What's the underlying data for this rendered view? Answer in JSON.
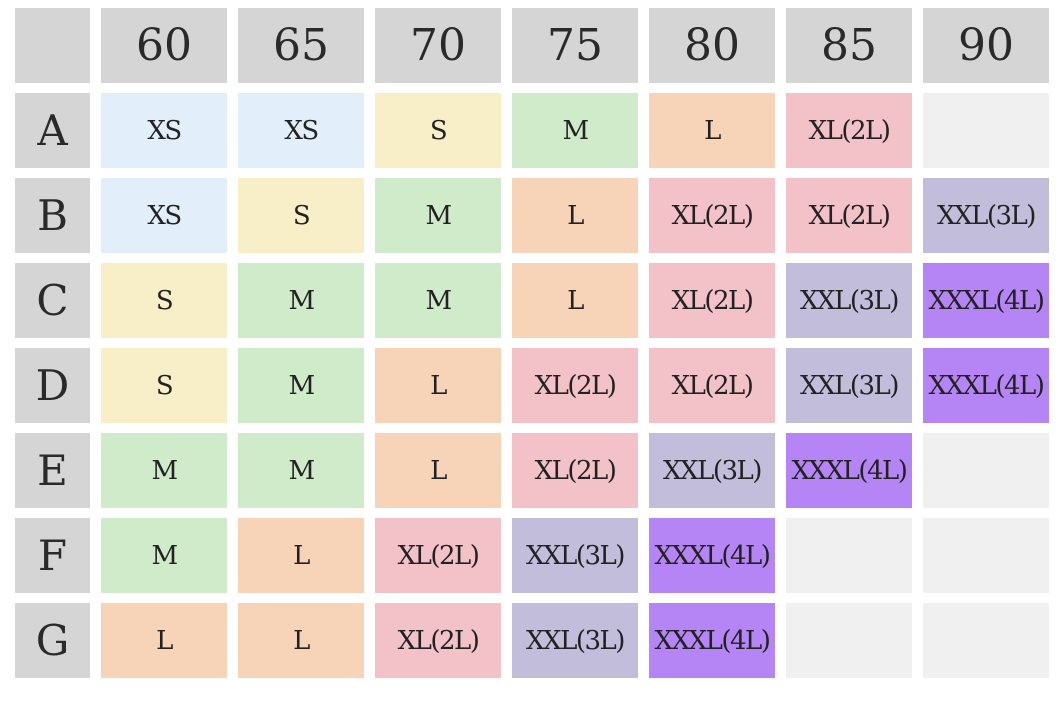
{
  "table": {
    "columns": [
      "60",
      "65",
      "70",
      "75",
      "80",
      "85",
      "90"
    ],
    "rows": [
      {
        "label": "A",
        "cells": [
          "XS",
          "XS",
          "S",
          "M",
          "L",
          "XL(2L)",
          ""
        ]
      },
      {
        "label": "B",
        "cells": [
          "XS",
          "S",
          "M",
          "L",
          "XL(2L)",
          "XL(2L)",
          "XXL(3L)"
        ]
      },
      {
        "label": "C",
        "cells": [
          "S",
          "M",
          "M",
          "L",
          "XL(2L)",
          "XXL(3L)",
          "XXXL(4L)"
        ]
      },
      {
        "label": "D",
        "cells": [
          "S",
          "M",
          "L",
          "XL(2L)",
          "XL(2L)",
          "XXL(3L)",
          "XXXL(4L)"
        ]
      },
      {
        "label": "E",
        "cells": [
          "M",
          "M",
          "L",
          "XL(2L)",
          "XXL(3L)",
          "XXXL(4L)",
          ""
        ]
      },
      {
        "label": "F",
        "cells": [
          "M",
          "L",
          "XL(2L)",
          "XXL(3L)",
          "XXXL(4L)",
          "",
          ""
        ]
      },
      {
        "label": "G",
        "cells": [
          "L",
          "L",
          "XL(2L)",
          "XXL(3L)",
          "XXXL(4L)",
          "",
          ""
        ]
      }
    ]
  },
  "colors": {
    "header": "#d5d5d5",
    "XS": "#e2eef9",
    "S": "#f8efc9",
    "M": "#d0ebca",
    "L": "#f7d3b8",
    "XL(2L)": "#f2c2c8",
    "XXL(3L)": "#c3bddc",
    "XXXL(4L)": "#b685f5",
    "empty": "#f0f0f0"
  }
}
